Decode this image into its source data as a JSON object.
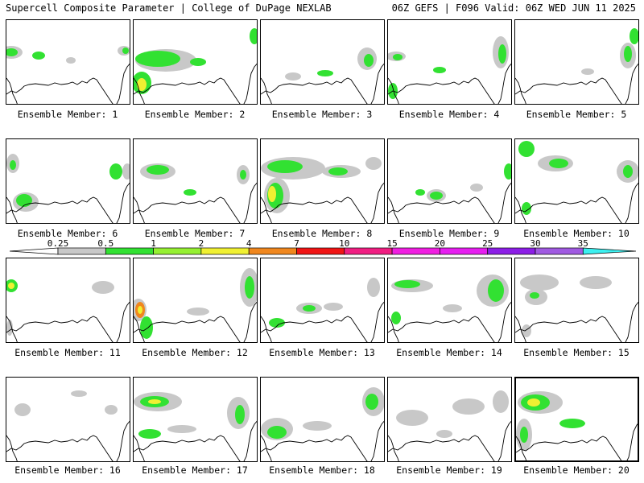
{
  "header": {
    "left": "Supercell Composite Parameter | College of DuPage NEXLAB",
    "right": "06Z GEFS | F096 Valid: 06Z WED JUN 11 2025"
  },
  "panels": [
    {
      "label": "Ensemble Member: 1"
    },
    {
      "label": "Ensemble Member: 2"
    },
    {
      "label": "Ensemble Member: 3"
    },
    {
      "label": "Ensemble Member: 4"
    },
    {
      "label": "Ensemble Member: 5"
    },
    {
      "label": "Ensemble Member: 6"
    },
    {
      "label": "Ensemble Member: 7"
    },
    {
      "label": "Ensemble Member: 8"
    },
    {
      "label": "Ensemble Member: 9"
    },
    {
      "label": "Ensemble Member: 10"
    },
    {
      "label": "Ensemble Member: 11"
    },
    {
      "label": "Ensemble Member: 12"
    },
    {
      "label": "Ensemble Member: 13"
    },
    {
      "label": "Ensemble Member: 14"
    },
    {
      "label": "Ensemble Member: 15"
    },
    {
      "label": "Ensemble Member: 16"
    },
    {
      "label": "Ensemble Member: 17"
    },
    {
      "label": "Ensemble Member: 18"
    },
    {
      "label": "Ensemble Member: 19"
    },
    {
      "label": "Ensemble Member: 20"
    }
  ],
  "selected_panel": "Ensemble Member: 20",
  "colorbar": {
    "ticks": [
      "0.25",
      "0.5",
      "1",
      "2",
      "4",
      "7",
      "10",
      "15",
      "20",
      "25",
      "30",
      "35"
    ],
    "colors": [
      "#c8c8c8",
      "#32e132",
      "#96f032",
      "#f0f032",
      "#f0871e",
      "#f01414",
      "#f01e82",
      "#f01ee1",
      "#e61ef0",
      "#8c1ee6",
      "#a05ae1",
      "#3cf0f0"
    ]
  },
  "fill_colors": {
    "gray": "#c8c8c8",
    "green": "#32e132",
    "lightgreen": "#96f032",
    "yellow": "#f0f032",
    "orange": "#f0871e"
  }
}
